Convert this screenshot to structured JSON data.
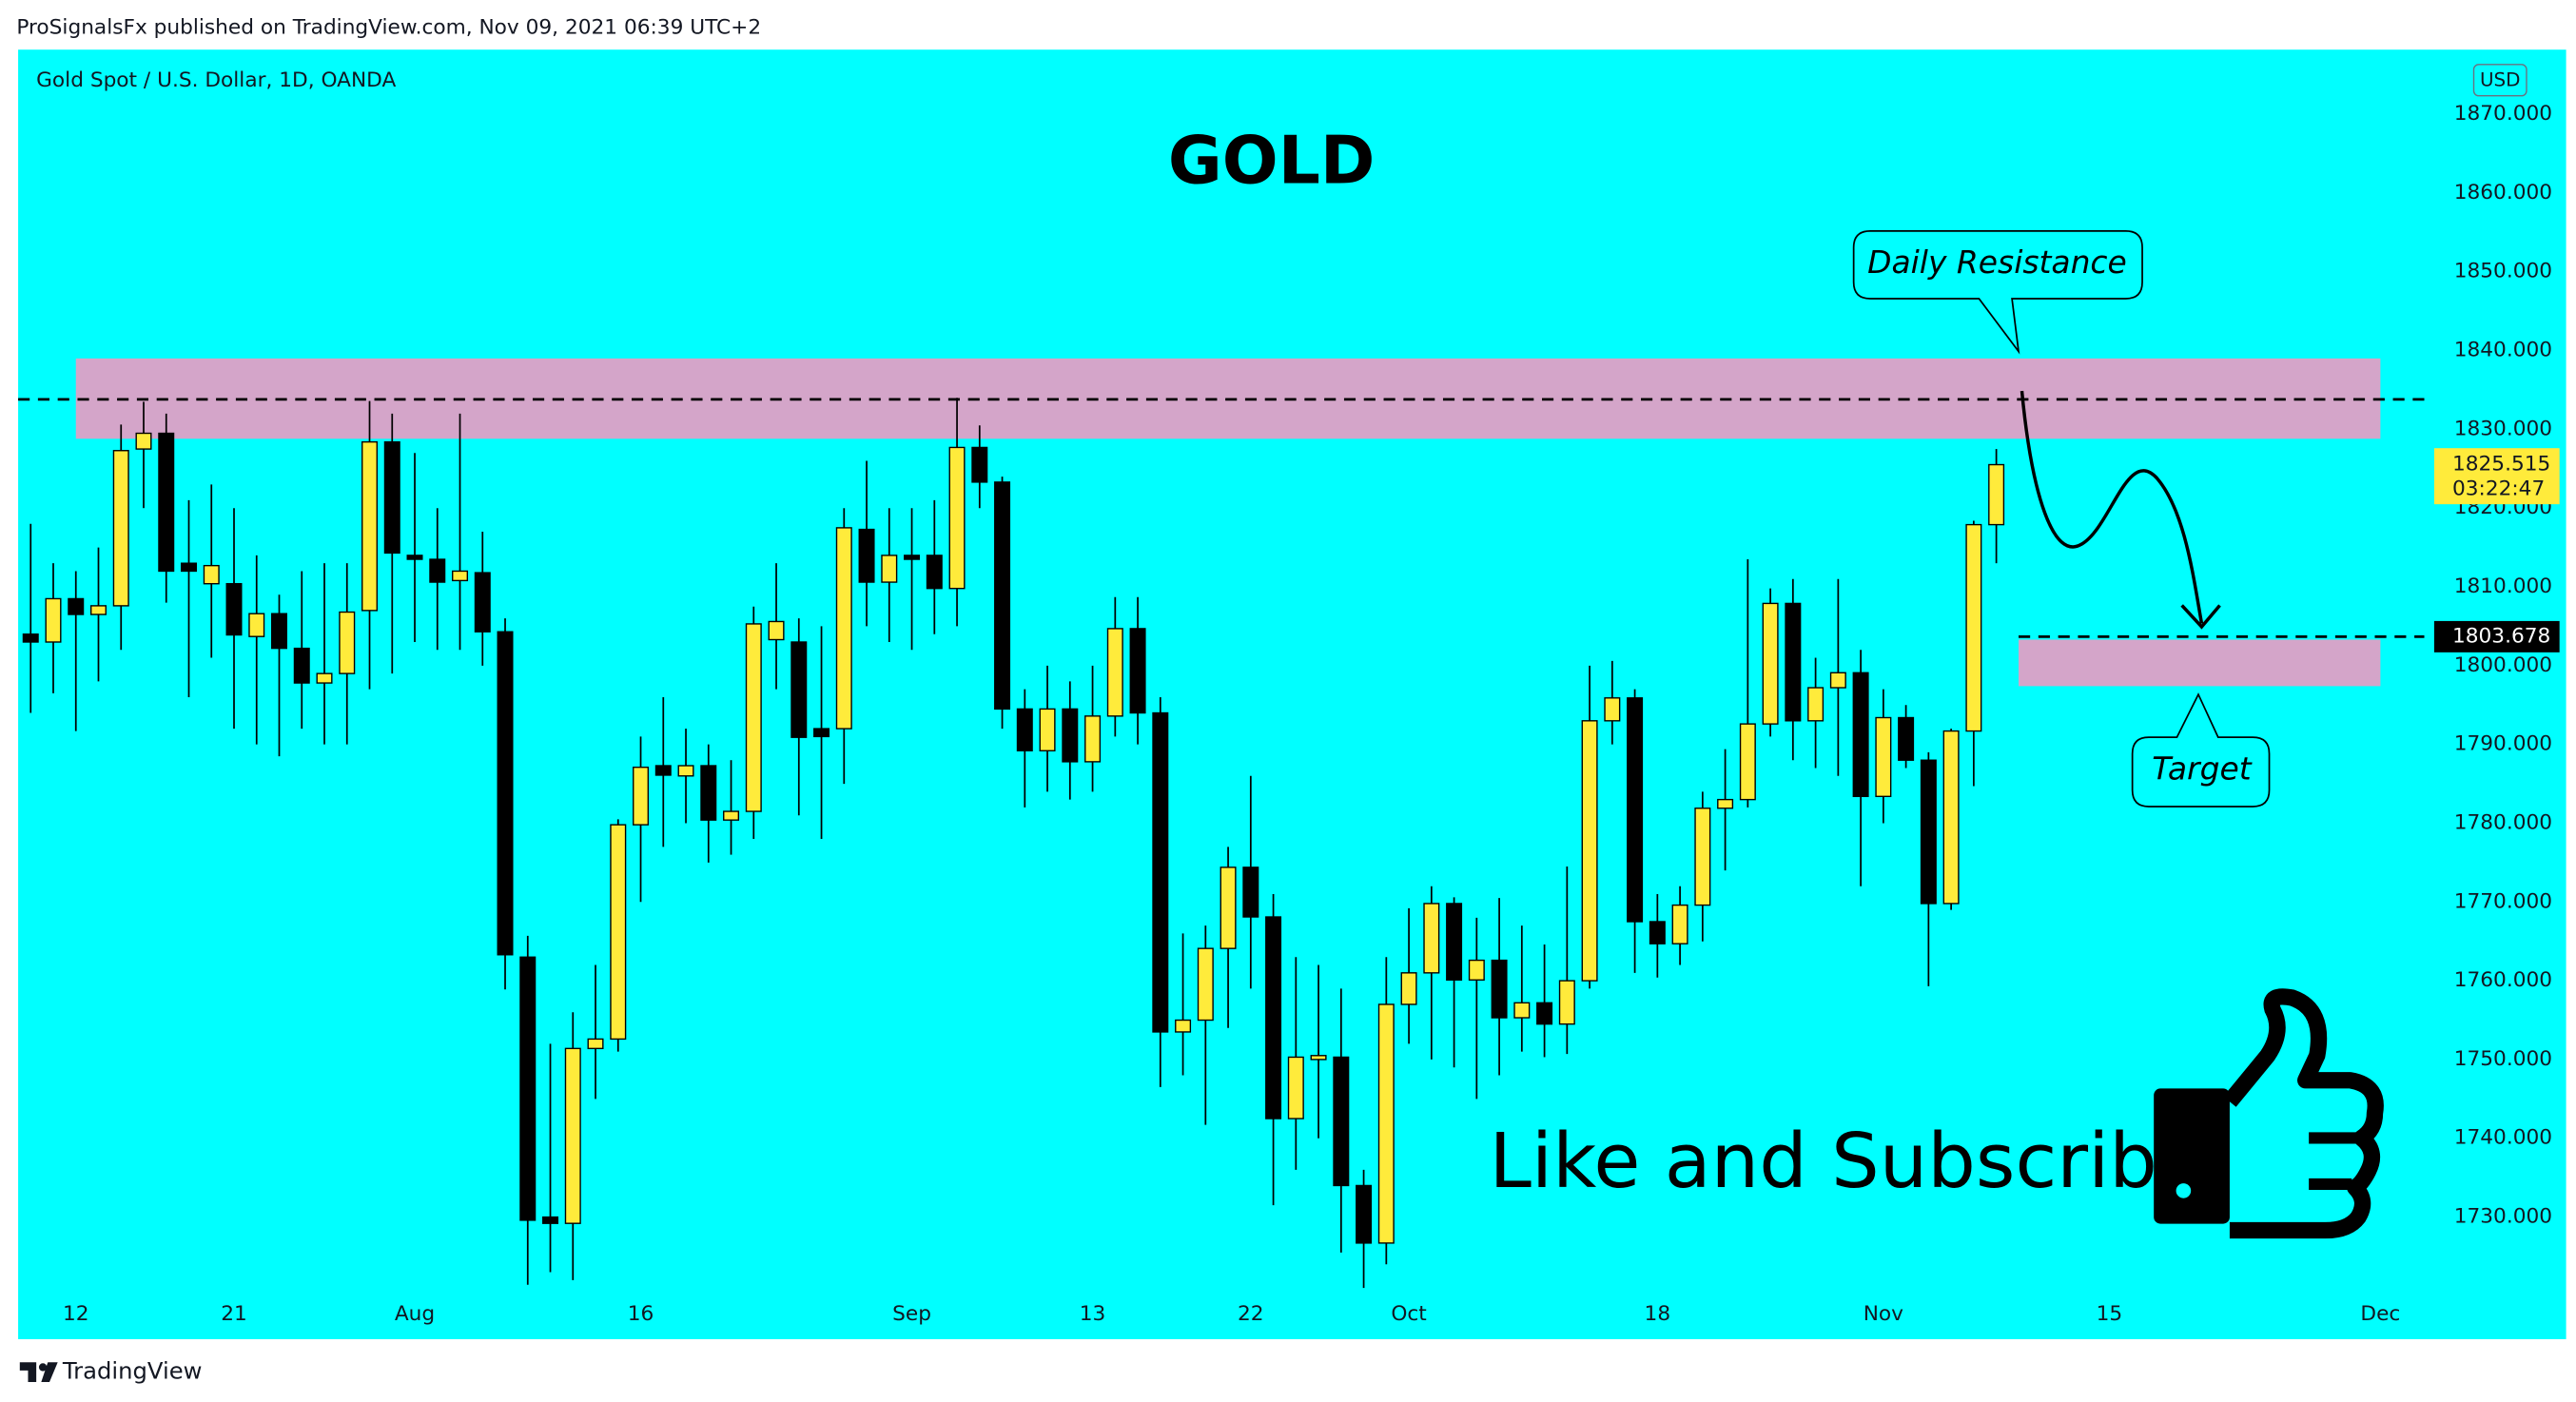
{
  "header": {
    "publisher": "ProSignalsFx published on TradingView.com, Nov 09, 2021 06:39 UTC+2"
  },
  "chart_data": {
    "type": "candlestick",
    "symbol": "Gold Spot / U.S. Dollar, 1D, OANDA",
    "title": "GOLD",
    "currency": "USD",
    "background": "#00ffff",
    "up_color": "#ffeb3b",
    "down_color": "#000000",
    "ylim": [
      1714.5,
      1878.2
    ],
    "yticks": [
      {
        "value": 1870,
        "label": "1870.000"
      },
      {
        "value": 1860,
        "label": "1860.000"
      },
      {
        "value": 1850,
        "label": "1850.000"
      },
      {
        "value": 1840,
        "label": "1840.000"
      },
      {
        "value": 1830,
        "label": "1830.000"
      },
      {
        "value": 1820,
        "label": "1820.000"
      },
      {
        "value": 1810,
        "label": "1810.000"
      },
      {
        "value": 1800,
        "label": "1800.000"
      },
      {
        "value": 1790,
        "label": "1790.000"
      },
      {
        "value": 1780,
        "label": "1780.000"
      },
      {
        "value": 1770,
        "label": "1770.000"
      },
      {
        "value": 1760,
        "label": "1760.000"
      },
      {
        "value": 1750,
        "label": "1750.000"
      },
      {
        "value": 1740,
        "label": "1740.000"
      },
      {
        "value": 1730,
        "label": "1730.000"
      }
    ],
    "categories": [
      null,
      null,
      "12",
      null,
      null,
      null,
      null,
      null,
      null,
      "21",
      null,
      null,
      null,
      null,
      null,
      null,
      null,
      "Aug",
      null,
      null,
      null,
      null,
      null,
      null,
      null,
      null,
      null,
      "16",
      null,
      null,
      null,
      null,
      null,
      null,
      null,
      null,
      null,
      null,
      null,
      "Sep",
      null,
      null,
      null,
      null,
      null,
      null,
      null,
      "13",
      null,
      null,
      null,
      null,
      null,
      null,
      "22",
      null,
      null,
      null,
      null,
      null,
      null,
      "Oct",
      null,
      null,
      null,
      null,
      null,
      null,
      null,
      null,
      null,
      null,
      "18",
      null,
      null,
      null,
      null,
      null,
      null,
      null,
      null,
      null,
      "Nov",
      null,
      null,
      null,
      null,
      null,
      null,
      null,
      null,
      null,
      "15",
      null,
      null,
      null,
      null,
      null,
      null,
      null,
      null,
      null,
      null,
      null,
      "Dec"
    ],
    "open": [
      1804,
      1803,
      1808.5,
      1806.5,
      1807.6,
      1827.5,
      1829.5,
      1813,
      1810.4,
      1810.4,
      1803.7,
      1806.6,
      1802.2,
      1797.8,
      1799,
      1807,
      1828.4,
      1814,
      1813.5,
      1810.8,
      1811.8,
      1804.3,
      1763,
      1730,
      1729.2,
      1751.4,
      1752.6,
      1779.8,
      1787.3,
      1786,
      1787.3,
      1780.4,
      1781.5,
      1803.3,
      1803,
      1792,
      1792,
      1817.3,
      1810.6,
      1814,
      1814,
      1809.8,
      1827.7,
      1823.3,
      1794.5,
      1789.2,
      1794.5,
      1787.8,
      1793.6,
      1804.7,
      1794,
      1753.5,
      1755,
      1764.1,
      1774.4,
      1768.1,
      1742.5,
      1750,
      1750.3,
      1734,
      1726.7,
      1757,
      1761,
      1769.8,
      1760.1,
      1762.6,
      1755.3,
      1757.2,
      1754.5,
      1760,
      1793,
      1795.9,
      1767.5,
      1764.7,
      1769.6,
      1781.9,
      1783,
      1792.6,
      1807.9,
      1793,
      1797.2,
      1799.1,
      1783.4,
      1793.4,
      1788,
      1769.8,
      1791.7,
      1817.9,
      null,
      null,
      null,
      null,
      null,
      null,
      null,
      null,
      null,
      null,
      null,
      null,
      null,
      null,
      null,
      null,
      null
    ],
    "high": [
      1818,
      1813,
      1812,
      1815,
      1830.6,
      1833.5,
      1832,
      1821,
      1823,
      1820,
      1814,
      1809,
      1812,
      1813,
      1813,
      1833.6,
      1832,
      1827,
      1820,
      1832,
      1817,
      1806,
      1765.7,
      1752,
      1756,
      1762,
      1780.5,
      1791,
      1796,
      1792,
      1790,
      1788,
      1807.5,
      1813,
      1806,
      1805,
      1820,
      1826,
      1820,
      1820,
      1821,
      1834,
      1830.5,
      1824,
      1797,
      1800,
      1798,
      1800,
      1808.7,
      1808.7,
      1796,
      1766,
      1767,
      1777,
      1786,
      1771,
      1763,
      1762,
      1759,
      1736,
      1763,
      1769.2,
      1772,
      1770.6,
      1768,
      1770.5,
      1767,
      1764.6,
      1774.5,
      1800,
      1800.6,
      1797,
      1771,
      1772,
      1784,
      1789.4,
      1813.5,
      1809.8,
      1811,
      1801,
      1811,
      1802,
      1797,
      1795,
      1789,
      1792,
      1818.4,
      1827.5,
      null,
      null,
      null,
      null,
      null,
      null,
      null,
      null,
      null,
      null,
      null,
      null,
      null,
      null,
      null,
      null,
      null
    ],
    "low": [
      1794,
      1796.5,
      1791.7,
      1798,
      1802,
      1820,
      1808,
      1796,
      1801,
      1792,
      1790,
      1788.5,
      1792,
      1790,
      1790,
      1797,
      1799,
      1803,
      1802,
      1802,
      1800,
      1758.9,
      1721.4,
      1723,
      1722,
      1745,
      1751,
      1770,
      1777,
      1780,
      1775,
      1776,
      1778,
      1797,
      1781,
      1778,
      1785,
      1805,
      1803,
      1802,
      1804,
      1805,
      1820,
      1792,
      1782,
      1784,
      1783,
      1784,
      1791,
      1790,
      1746.5,
      1748,
      1741.7,
      1754,
      1759,
      1731.5,
      1736,
      1740,
      1725.5,
      1721,
      1724,
      1752,
      1750,
      1749,
      1745,
      1748,
      1751,
      1750.3,
      1750.7,
      1759,
      1790,
      1761,
      1760.4,
      1762,
      1765,
      1774,
      1782,
      1791,
      1788,
      1787,
      1786,
      1772,
      1780,
      1787,
      1759.3,
      1769,
      1784.7,
      1813,
      null,
      null,
      null,
      null,
      null,
      null,
      null,
      null,
      null,
      null,
      null,
      null,
      null,
      null,
      null,
      null,
      null
    ],
    "close": [
      1803,
      1808.5,
      1806.5,
      1807.6,
      1827.3,
      1829.5,
      1812,
      1812,
      1812.7,
      1803.9,
      1806.6,
      1802.2,
      1797.8,
      1799,
      1806.8,
      1828.4,
      1814.3,
      1813.5,
      1810.6,
      1812,
      1804.3,
      1763.3,
      1729.6,
      1729.2,
      1751.4,
      1752.6,
      1779.8,
      1787.1,
      1786.1,
      1787.3,
      1780.4,
      1781.5,
      1805.3,
      1805.6,
      1790.9,
      1791,
      1817.5,
      1810.6,
      1814,
      1813.5,
      1809.8,
      1827.7,
      1823.3,
      1794.5,
      1789.2,
      1794.5,
      1787.8,
      1793.6,
      1804.7,
      1794,
      1753.5,
      1755,
      1764.1,
      1774.4,
      1768.1,
      1742.5,
      1750.3,
      1750.5,
      1734,
      1726.7,
      1757,
      1761,
      1769.8,
      1760.1,
      1762.6,
      1755.3,
      1757.2,
      1754.5,
      1760,
      1793,
      1795.9,
      1767.5,
      1764.7,
      1769.6,
      1781.9,
      1783,
      1792.6,
      1807.9,
      1793,
      1797.2,
      1799.1,
      1783.4,
      1793.4,
      1788,
      1769.8,
      1791.7,
      1817.9,
      1825.515,
      null,
      null,
      null,
      null,
      null,
      null,
      null,
      null,
      null,
      null,
      null,
      null,
      null,
      null,
      null,
      null,
      null
    ],
    "last_price_countdown": "03:22:47",
    "zones": [
      {
        "from": 1828.8,
        "to": 1839.0,
        "color": "#d4a5c9"
      },
      {
        "from": 1797.4,
        "to": 1803.3,
        "color": "#d4a5c9"
      }
    ],
    "levels": [
      1833.8,
      1803.678
    ],
    "annotations": [
      "Daily Resistance",
      "Target"
    ],
    "call_to_action": "Like and Subscribe"
  },
  "footer": {
    "brand": "TradingView"
  }
}
